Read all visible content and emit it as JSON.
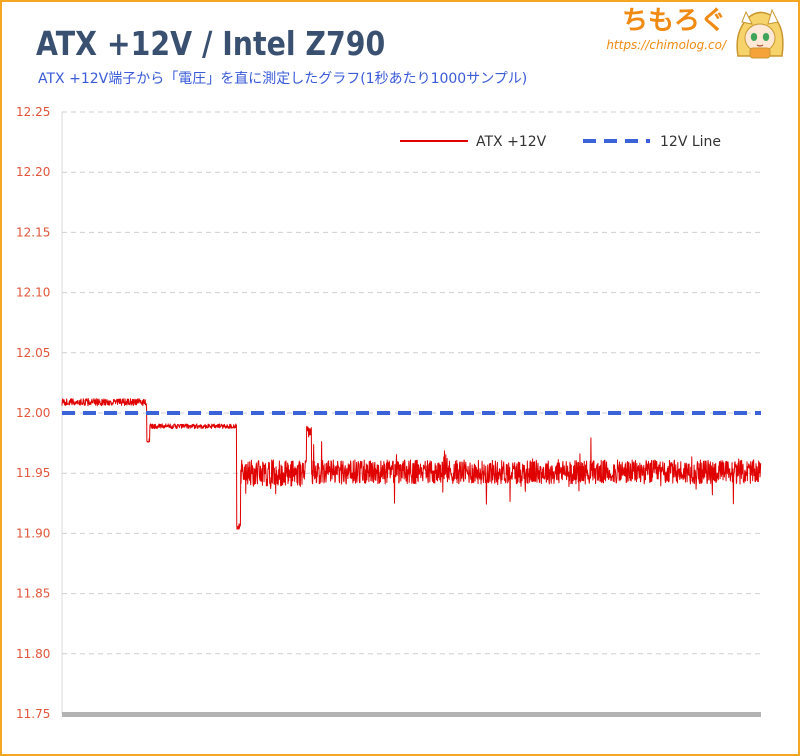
{
  "header": {
    "title": "ATX +12V / Intel Z790",
    "subtitle": "ATX +12V端子から「電圧」を直に測定したグラフ(1秒あたり1000サンプル)"
  },
  "brand": {
    "name": "ちもろぐ",
    "url": "https://chimolog.co/",
    "mascot_icon": "mascot-character-icon"
  },
  "colors": {
    "series_red": "#e00000",
    "series_blue": "#3a63d8",
    "tick_label": "#e0553a",
    "frame": "#f5a623"
  },
  "chart_data": {
    "type": "line",
    "ylim": [
      11.75,
      12.25
    ],
    "yticks": [
      "12.25",
      "12.20",
      "12.15",
      "12.10",
      "12.05",
      "12.00",
      "11.95",
      "11.90",
      "11.85",
      "11.80",
      "11.75"
    ],
    "ytick_values": [
      12.25,
      12.2,
      12.15,
      12.1,
      12.05,
      12.0,
      11.95,
      11.9,
      11.85,
      11.8,
      11.75
    ],
    "grid": "horizontal-dashed",
    "legend": {
      "placement": "top-right"
    },
    "x_unit": "sample",
    "xlim": [
      0,
      700
    ],
    "series": [
      {
        "name": "ATX +12V",
        "style": "solid",
        "segments": [
          {
            "x_start": 0,
            "x_end": 85,
            "mean": 12.009,
            "noise": 0.003
          },
          {
            "x_start": 85,
            "x_end": 88,
            "mean": 11.977,
            "noise": 0.002
          },
          {
            "x_start": 88,
            "x_end": 175,
            "mean": 11.989,
            "noise": 0.002
          },
          {
            "x_start": 175,
            "x_end": 179,
            "mean": 11.905,
            "noise": 0.003
          },
          {
            "x_start": 179,
            "x_end": 245,
            "mean": 11.95,
            "noise": 0.011
          },
          {
            "x_start": 245,
            "x_end": 250,
            "mean": 11.985,
            "noise": 0.006
          },
          {
            "x_start": 250,
            "x_end": 700,
            "mean": 11.951,
            "noise": 0.01
          }
        ]
      },
      {
        "name": "12V Line",
        "style": "dashed",
        "value": 12.0
      }
    ]
  }
}
